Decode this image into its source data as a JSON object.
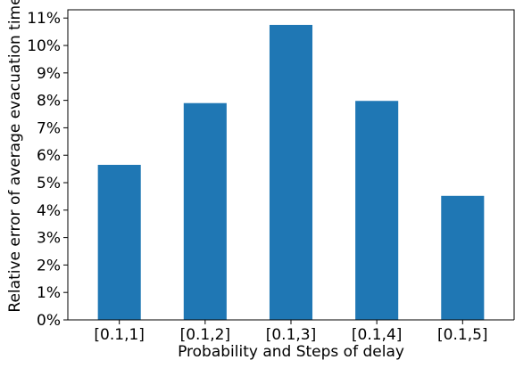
{
  "colors": {
    "bar": "#1f77b4",
    "axis": "#000000",
    "background": "#ffffff"
  },
  "chart_data": {
    "type": "bar",
    "title": "",
    "xlabel": "Probability and Steps of delay",
    "ylabel": "Relative error of average evacuation time",
    "categories": [
      "[0.1,1]",
      "[0.1,2]",
      "[0.1,3]",
      "[0.1,4]",
      "[0.1,5]"
    ],
    "values": [
      5.65,
      7.9,
      10.75,
      7.98,
      4.52
    ],
    "value_unit": "%",
    "ylim": [
      0,
      11.3
    ],
    "yticks": [
      0,
      1,
      2,
      3,
      4,
      5,
      6,
      7,
      8,
      9,
      10,
      11
    ],
    "ytick_labels": [
      "0%",
      "1%",
      "2%",
      "3%",
      "4%",
      "5%",
      "6%",
      "7%",
      "8%",
      "9%",
      "10%",
      "11%"
    ],
    "grid": false,
    "legend": "none"
  }
}
